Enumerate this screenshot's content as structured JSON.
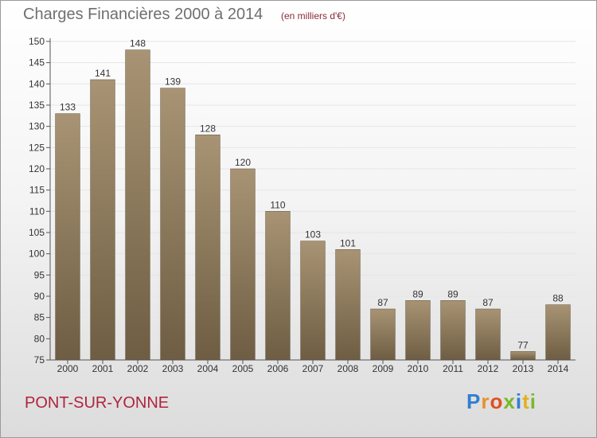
{
  "header": {
    "title": "Charges Financières 2000 à 2014",
    "subtitle": "(en milliers d'€)"
  },
  "footer": {
    "commune": "PONT-SUR-YONNE",
    "logo_text": "Proxiti",
    "logo_colors": [
      "#2f7fd0",
      "#e6922a",
      "#e05020",
      "#7ab828",
      "#2f7fd0",
      "#e0b020",
      "#7ab828"
    ]
  },
  "colors": {
    "bar_light": "#a89474",
    "bar_dark": "#6e5d43",
    "axis": "#555555",
    "grid": "#e6e6e6"
  },
  "chart_data": {
    "type": "bar",
    "categories": [
      "2000",
      "2001",
      "2002",
      "2003",
      "2004",
      "2005",
      "2006",
      "2007",
      "2008",
      "2009",
      "2010",
      "2011",
      "2012",
      "2013",
      "2014"
    ],
    "values": [
      133,
      141,
      148,
      139,
      128,
      120,
      110,
      103,
      101,
      87,
      89,
      89,
      87,
      77,
      88
    ],
    "title": "Charges Financières 2000 à 2014",
    "subtitle": "(en milliers d'€)",
    "ylim": [
      75,
      150
    ],
    "yticks": [
      75,
      80,
      85,
      90,
      95,
      100,
      105,
      110,
      115,
      120,
      125,
      130,
      135,
      140,
      145,
      150
    ],
    "data_labels": true,
    "grid": true
  }
}
